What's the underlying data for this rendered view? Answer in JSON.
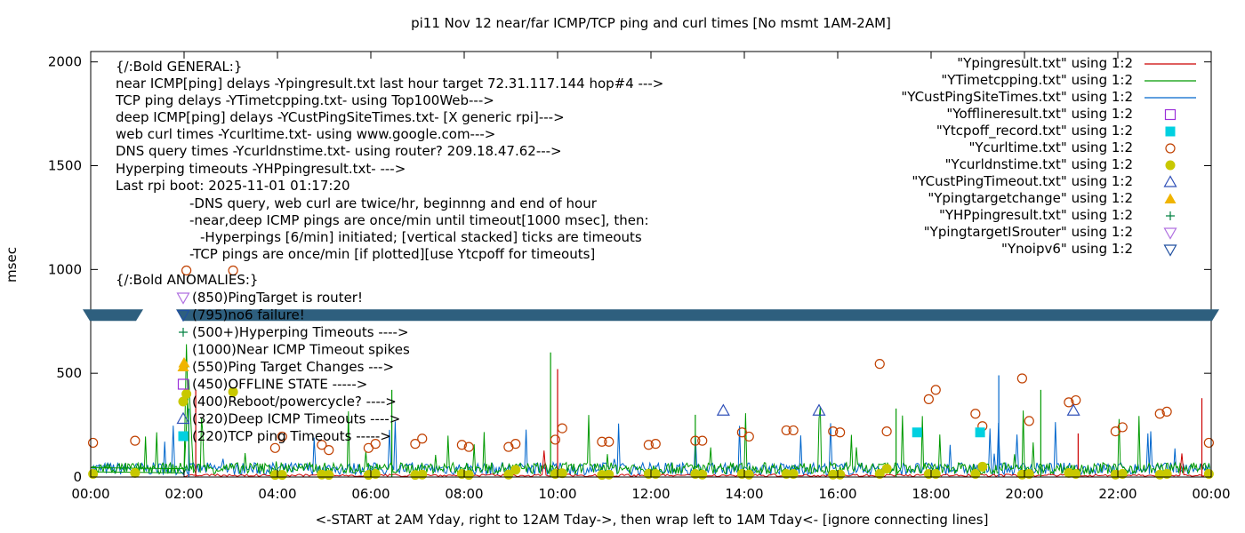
{
  "chart_data": {
    "type": "line",
    "title": "pi11 Nov 12  near/far ICMP/TCP ping and curl times [No msmt 1AM-2AM]",
    "xlabel": "<-START at 2AM Yday, right to 12AM Tday->, then wrap left to 1AM Tday<- [ignore connecting lines]",
    "ylabel": "msec",
    "xlim": [
      0,
      24
    ],
    "ylim": [
      0,
      2050
    ],
    "x_ticks": [
      {
        "v": 0,
        "label": "00:00"
      },
      {
        "v": 2,
        "label": "02:00"
      },
      {
        "v": 4,
        "label": "04:00"
      },
      {
        "v": 6,
        "label": "06:00"
      },
      {
        "v": 8,
        "label": "08:00"
      },
      {
        "v": 10,
        "label": "10:00"
      },
      {
        "v": 12,
        "label": "12:00"
      },
      {
        "v": 14,
        "label": "14:00"
      },
      {
        "v": 16,
        "label": "16:00"
      },
      {
        "v": 18,
        "label": "18:00"
      },
      {
        "v": 20,
        "label": "20:00"
      },
      {
        "v": 22,
        "label": "22:00"
      },
      {
        "v": 24,
        "label": "00:00"
      }
    ],
    "y_ticks": [
      {
        "v": 0,
        "label": "0"
      },
      {
        "v": 500,
        "label": "500"
      },
      {
        "v": 1000,
        "label": "1000"
      },
      {
        "v": 1500,
        "label": "1500"
      },
      {
        "v": 2000,
        "label": "2000"
      }
    ],
    "axis_break": {
      "y": 780
    },
    "legend_position": "top-right",
    "legend": [
      {
        "label": "\"Ypingresult.txt\" using 1:2",
        "style": "line",
        "color": "#cc0000"
      },
      {
        "label": "\"YTimetcpping.txt\" using 1:2",
        "style": "line",
        "color": "#009900"
      },
      {
        "label": "\"YCustPingSiteTimes.txt\" using 1:2",
        "style": "line",
        "color": "#0066cc"
      },
      {
        "label": "\"Yofflineresult.txt\" using 1:2",
        "style": "open-square",
        "color": "#9b30d9"
      },
      {
        "label": "\"Ytcpoff_record.txt\" using 1:2",
        "style": "filled-square",
        "color": "#00d0e0"
      },
      {
        "label": "\"Ycurltime.txt\" using 1:2",
        "style": "open-circle",
        "color": "#c04000"
      },
      {
        "label": "\"Ycurldnstime.txt\" using 1:2",
        "style": "filled-circle",
        "color": "#c8c800"
      },
      {
        "label": "\"YCustPingTimeout.txt\" using 1:2",
        "style": "open-triangle",
        "color": "#3050b8"
      },
      {
        "label": "\"Ypingtargetchange\" using 1:2",
        "style": "filled-triangle",
        "color": "#f0b400"
      },
      {
        "label": "\"YHPpingresult.txt\" using 1:2",
        "style": "plus",
        "color": "#008040"
      },
      {
        "label": "\"YpingtargetISrouter\" using 1:2",
        "style": "open-triangle-down",
        "color": "#b070e0"
      },
      {
        "label": "\"Ynoipv6\" using 1:2",
        "style": "open-triangle-down",
        "color": "#2050a0"
      }
    ],
    "info_text": [
      "{/:Bold GENERAL:}",
      "near ICMP[ping] delays -Ypingresult.txt last hour target 72.31.117.144 hop#4 --->",
      "TCP ping delays -YTimetcpping.txt- using Top100Web--->",
      "deep ICMP[ping] delays -YCustPingSiteTimes.txt- [X generic rpi]--->",
      "web curl times -Ycurltime.txt- using www.google.com--->",
      "DNS query times -Ycurldnstime.txt- using router? 209.18.47.62--->",
      "Hyperping timeouts -YHPpingresult.txt- --->",
      "Last rpi boot: 2025-11-01 01:17:20",
      "-DNS query, web curl are twice/hr, beginnng and end of hour",
      "-near,deep ICMP pings are once/min until timeout[1000 msec], then:",
      "-Hyperpings [6/min] initiated; [vertical stacked] ticks are timeouts",
      "-TCP pings are once/min [if plotted][use Ytcpoff for timeouts]",
      "{/:Bold ANOMALIES:}"
    ],
    "anomaly_legend": [
      {
        "label": "(850)PingTarget is router!",
        "style": "open-triangle-down",
        "color": "#b070e0"
      },
      {
        "label": "(795)no6 failure!",
        "style": "open-triangle-down",
        "color": "#2050a0"
      },
      {
        "label": "(500+)Hyperping Timeouts ---->",
        "style": "plus",
        "color": "#008040"
      },
      {
        "label": "(1000)Near ICMP Timeout spikes",
        "style": "none",
        "color": "#cc0000"
      },
      {
        "label": "(550)Ping Target Changes --->",
        "style": "filled-triangle",
        "color": "#f0b400"
      },
      {
        "label": "(450)OFFLINE STATE ----->",
        "style": "open-square",
        "color": "#9b30d9"
      },
      {
        "label": "(400)Reboot/powercycle? ---->",
        "style": "filled-circle",
        "color": "#c8c800"
      },
      {
        "label": "(320)Deep ICMP Timeouts ---->",
        "style": "open-triangle",
        "color": "#3050b8"
      },
      {
        "label": "(220)TCP ping Timeouts ----->",
        "style": "filled-square",
        "color": "#00d0e0"
      }
    ],
    "series": [
      {
        "name": "Ycurltime.txt",
        "marker": "open-circle",
        "color": "#c04000",
        "x": [
          0.05,
          0.95,
          2.05,
          3.05,
          3.95,
          4.1,
          4.95,
          5.1,
          5.95,
          6.1,
          6.95,
          7.1,
          7.95,
          8.1,
          8.95,
          9.1,
          9.95,
          10.1,
          10.95,
          11.1,
          11.95,
          12.1,
          12.95,
          13.1,
          13.95,
          14.1,
          14.9,
          15.05,
          15.9,
          16.05,
          16.9,
          17.05,
          17.95,
          18.1,
          18.95,
          19.1,
          19.95,
          20.1,
          20.95,
          21.1,
          21.95,
          22.1,
          22.9,
          23.05,
          23.95
        ],
        "y": [
          165,
          175,
          995,
          995,
          140,
          195,
          155,
          130,
          140,
          160,
          160,
          185,
          155,
          145,
          145,
          160,
          180,
          235,
          170,
          170,
          155,
          160,
          175,
          175,
          215,
          195,
          225,
          225,
          220,
          215,
          545,
          220,
          375,
          420,
          305,
          245,
          475,
          270,
          360,
          370,
          220,
          240,
          305,
          315,
          165
        ]
      },
      {
        "name": "Ycurldnstime.txt",
        "marker": "filled-circle",
        "color": "#c8c800",
        "x": [
          0.05,
          0.95,
          2.05,
          3.05,
          3.95,
          4.1,
          4.95,
          5.1,
          5.95,
          6.1,
          6.95,
          7.1,
          7.95,
          8.1,
          8.95,
          9.1,
          9.95,
          10.1,
          10.95,
          11.1,
          11.95,
          12.1,
          12.95,
          13.1,
          13.95,
          14.1,
          14.9,
          15.05,
          15.9,
          16.05,
          16.9,
          17.05,
          17.95,
          18.1,
          18.95,
          19.1,
          19.95,
          20.1,
          20.95,
          21.1,
          21.95,
          22.1,
          22.9,
          23.05,
          23.95
        ],
        "y": [
          15,
          20,
          400,
          410,
          10,
          10,
          12,
          10,
          10,
          15,
          10,
          12,
          15,
          10,
          12,
          35,
          15,
          18,
          10,
          12,
          15,
          15,
          15,
          12,
          15,
          12,
          15,
          15,
          12,
          12,
          15,
          40,
          15,
          15,
          15,
          50,
          12,
          15,
          20,
          15,
          12,
          15,
          12,
          15,
          15
        ]
      },
      {
        "name": "YCustPingTimeout.txt",
        "marker": "open-triangle",
        "color": "#3050b8",
        "x": [
          13.55,
          15.6,
          21.05
        ],
        "y": [
          320,
          320,
          320
        ]
      },
      {
        "name": "Ytcpoff_record.txt",
        "marker": "filled-square",
        "color": "#00d0e0",
        "x": [
          17.7,
          19.05
        ],
        "y": [
          215,
          215
        ]
      },
      {
        "name": "Ypingtargetchange",
        "marker": "filled-triangle",
        "color": "#f0b400",
        "x": [
          2.0
        ],
        "y": [
          550
        ]
      }
    ]
  }
}
